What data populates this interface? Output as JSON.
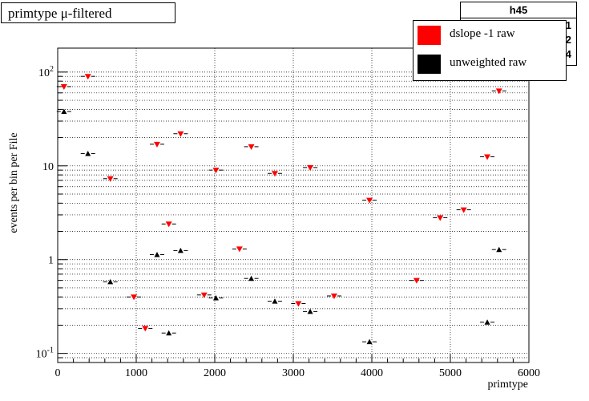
{
  "title": "primtype μ-filtered",
  "stats": {
    "name": "h45",
    "rows": [
      "91",
      "22",
      "54"
    ]
  },
  "legend": {
    "items": [
      {
        "label": "dslope -1 raw",
        "color": "#ff0000"
      },
      {
        "label": "unweighted raw",
        "color": "#000000"
      }
    ]
  },
  "chart_data": {
    "type": "scatter",
    "xlabel": "primtype",
    "ylabel": "events per bin per File",
    "xlim": [
      0,
      6000
    ],
    "ylim": [
      0.08,
      180
    ],
    "yscale": "log",
    "grid": true,
    "x_ticks": [
      0,
      1000,
      2000,
      3000,
      4000,
      5000,
      6000
    ],
    "y_ticks": [
      {
        "value": 0.1,
        "label": "10",
        "sup": "-1"
      },
      {
        "value": 1,
        "label": "1",
        "sup": ""
      },
      {
        "value": 10,
        "label": "10",
        "sup": ""
      },
      {
        "value": 100,
        "label": "10",
        "sup": "2"
      }
    ],
    "series": [
      {
        "name": "dslope -1 raw",
        "color": "#ff0000",
        "marker": "triangle-down",
        "points": [
          [
            80,
            70
          ],
          [
            385,
            90
          ],
          [
            670,
            7.3
          ],
          [
            970,
            0.4
          ],
          [
            1115,
            0.185
          ],
          [
            1265,
            17
          ],
          [
            1415,
            2.4
          ],
          [
            1565,
            22
          ],
          [
            1865,
            0.42
          ],
          [
            2015,
            9
          ],
          [
            2315,
            1.3
          ],
          [
            2465,
            16
          ],
          [
            2765,
            8.3
          ],
          [
            3065,
            0.34
          ],
          [
            3215,
            9.6
          ],
          [
            3520,
            0.41
          ],
          [
            3970,
            4.3
          ],
          [
            4570,
            0.6
          ],
          [
            4870,
            2.8
          ],
          [
            5170,
            3.4
          ],
          [
            5470,
            12.5
          ],
          [
            5620,
            63
          ]
        ]
      },
      {
        "name": "unweighted raw",
        "color": "#000000",
        "marker": "triangle-up",
        "points": [
          [
            80,
            38
          ],
          [
            385,
            13.5
          ],
          [
            670,
            0.58
          ],
          [
            1265,
            1.13
          ],
          [
            1415,
            0.165
          ],
          [
            1565,
            1.25
          ],
          [
            2015,
            0.39
          ],
          [
            2465,
            0.63
          ],
          [
            2765,
            0.36
          ],
          [
            3215,
            0.28
          ],
          [
            3970,
            0.133
          ],
          [
            5470,
            0.215
          ],
          [
            5620,
            1.28
          ]
        ]
      }
    ]
  }
}
